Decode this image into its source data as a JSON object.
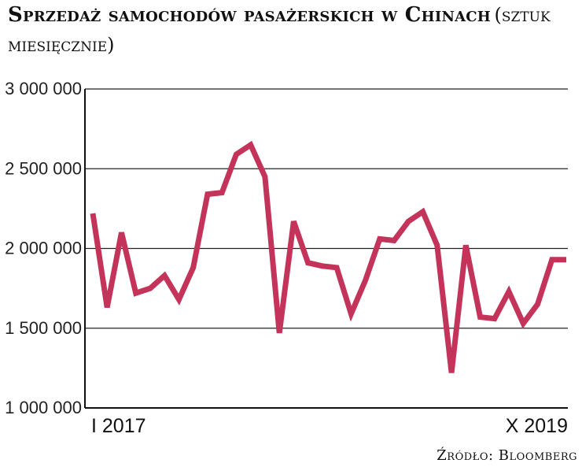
{
  "chart_data": {
    "type": "line",
    "title_bold": "Sprzedaż samochodów pasażerskich w Chinach",
    "title_light": "(sztuk miesięcznie)",
    "x_start_label": "I 2017",
    "x_end_label": "X 2019",
    "source": "Źródło: Bloomberg",
    "ylim": [
      1000000,
      3000000
    ],
    "yticks": [
      {
        "value": 3000000,
        "label": "3 000 000"
      },
      {
        "value": 2500000,
        "label": "2 500 000"
      },
      {
        "value": 2000000,
        "label": "2 000 000"
      },
      {
        "value": 1500000,
        "label": "1 500 000"
      },
      {
        "value": 1000000,
        "label": "1 000 000"
      }
    ],
    "grid": true,
    "series": [
      {
        "color": "#c4345a",
        "values": [
          2220000,
          1630000,
          2100000,
          1720000,
          1750000,
          1830000,
          1680000,
          1880000,
          2340000,
          2350000,
          2590000,
          2650000,
          2450000,
          1470000,
          2170000,
          1910000,
          1890000,
          1880000,
          1590000,
          1800000,
          2060000,
          2050000,
          2170000,
          2230000,
          2020000,
          1220000,
          2020000,
          1570000,
          1560000,
          1730000,
          1530000,
          1650000,
          1930000,
          1930000
        ]
      }
    ]
  }
}
